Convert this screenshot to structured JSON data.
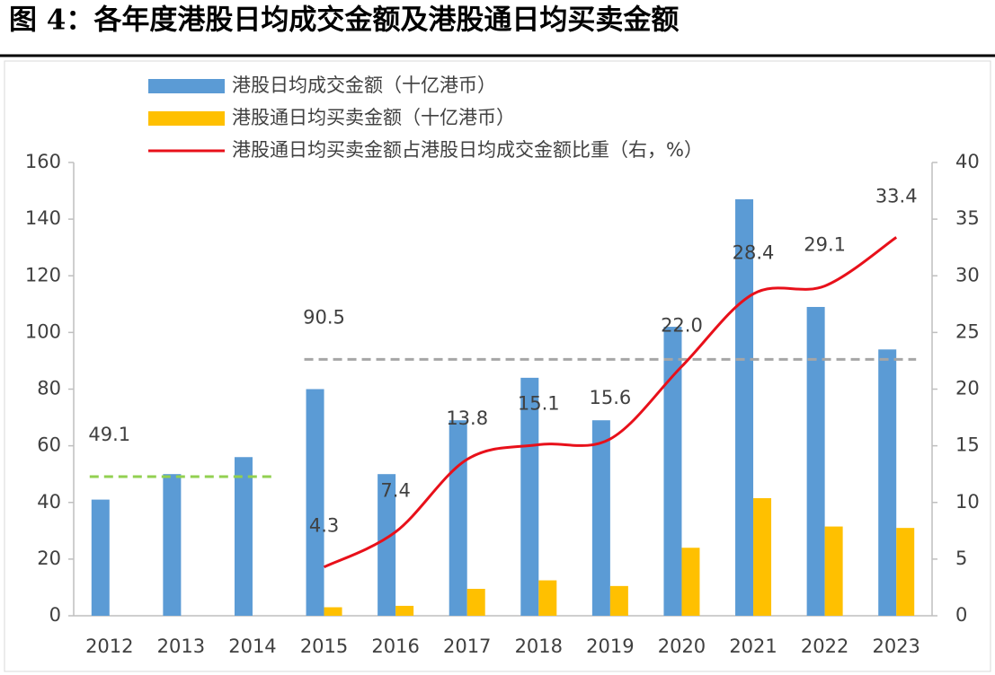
{
  "chart_data": {
    "type": "bar_line",
    "title": "图 4：各年度港股日均成交金额及港股通日均买卖金额",
    "categories": [
      "2012",
      "2013",
      "2014",
      "2015",
      "2016",
      "2017",
      "2018",
      "2019",
      "2020",
      "2021",
      "2022",
      "2023"
    ],
    "series": [
      {
        "name": "港股日均成交金额（十亿港币）",
        "type": "bar",
        "color": "#5b9bd5",
        "values": [
          41,
          50,
          56,
          80,
          50,
          69,
          84,
          69,
          102,
          147,
          109,
          94
        ]
      },
      {
        "name": "港股通日均买卖金额（十亿港币）",
        "type": "bar",
        "color": "#ffc000",
        "values": [
          null,
          null,
          null,
          3,
          3.5,
          9.5,
          12.5,
          10.5,
          24,
          41.5,
          31.5,
          31
        ]
      },
      {
        "name": "港股通日均买卖金额占港股日均成交金额比重（右，%）",
        "type": "line",
        "axis": "y2",
        "color": "#e8101a",
        "values": [
          null,
          null,
          null,
          4.3,
          7.4,
          13.8,
          15.1,
          15.6,
          22.0,
          28.4,
          29.1,
          33.4
        ],
        "value_labels": [
          null,
          null,
          null,
          "4.3",
          "7.4",
          "13.8",
          "15.1",
          "15.6",
          "22.0",
          "28.4",
          "29.1",
          "33.4"
        ]
      }
    ],
    "reference_lines": [
      {
        "value": 49.1,
        "span": [
          "2012",
          "2014"
        ],
        "color": "#92d050"
      },
      {
        "value": 90.5,
        "span": [
          "2015",
          "2023"
        ],
        "color": "#a6a6a6"
      }
    ],
    "ylim": [
      0,
      160
    ],
    "yticks": [
      0,
      20,
      40,
      60,
      80,
      100,
      120,
      140,
      160
    ],
    "y2lim": [
      0,
      40
    ],
    "y2ticks": [
      0,
      5,
      10,
      15,
      20,
      25,
      30,
      35,
      40
    ],
    "legend": "top-left"
  }
}
